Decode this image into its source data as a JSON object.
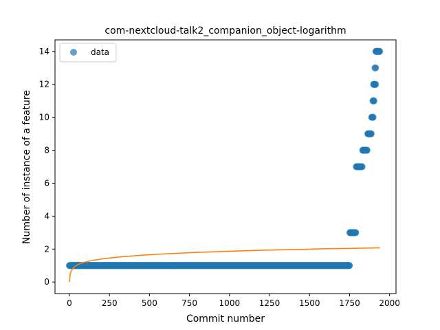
{
  "chart_data": {
    "type": "scatter",
    "title": "com-nextcloud-talk2_companion_object-logarithm",
    "xlabel": "Commit number",
    "ylabel": "Number of instance of a feature",
    "xlim": [
      -90,
      2040
    ],
    "ylim": [
      -0.7,
      14.7
    ],
    "xticks": [
      0,
      250,
      500,
      750,
      1000,
      1250,
      1500,
      1750,
      2000
    ],
    "xtick_labels": [
      "0",
      "250",
      "500",
      "750",
      "1000",
      "1250",
      "1500",
      "1750",
      "2000"
    ],
    "yticks": [
      0,
      2,
      4,
      6,
      8,
      10,
      12,
      14
    ],
    "ytick_labels": [
      "0",
      "2",
      "4",
      "6",
      "8",
      "10",
      "12",
      "14"
    ],
    "legend": {
      "position": "upper-left",
      "entries": [
        "data"
      ]
    },
    "colors": {
      "data": "#1f77b4",
      "fit": "#ff7f0e"
    },
    "series": [
      {
        "name": "data",
        "kind": "points",
        "segments": [
          {
            "x_start": 0,
            "x_end": 1750,
            "y": 1
          },
          {
            "x_start": 1752,
            "x_end": 1790,
            "y": 3
          },
          {
            "x_start": 1792,
            "x_end": 1828,
            "y": 7
          },
          {
            "x_start": 1832,
            "x_end": 1860,
            "y": 8
          },
          {
            "x_start": 1864,
            "x_end": 1885,
            "y": 9
          },
          {
            "x_start": 1888,
            "x_end": 1898,
            "y": 10
          },
          {
            "x_start": 1896,
            "x_end": 1902,
            "y": 11
          },
          {
            "x_start": 1900,
            "x_end": 1912,
            "y": 12
          },
          {
            "x_start": 1909,
            "x_end": 1914,
            "y": 13
          },
          {
            "x_start": 1914,
            "x_end": 1940,
            "y": 14
          }
        ]
      },
      {
        "kind": "line",
        "x": [
          0,
          5,
          10,
          20,
          40,
          60,
          100,
          150,
          200,
          300,
          400,
          500,
          600,
          800,
          1000,
          1200,
          1400,
          1600,
          1800,
          1940
        ],
        "y": [
          0.0,
          0.48,
          0.64,
          0.82,
          0.99,
          1.09,
          1.22,
          1.32,
          1.4,
          1.51,
          1.59,
          1.66,
          1.71,
          1.8,
          1.87,
          1.93,
          1.97,
          2.02,
          2.05,
          2.08
        ]
      }
    ]
  }
}
